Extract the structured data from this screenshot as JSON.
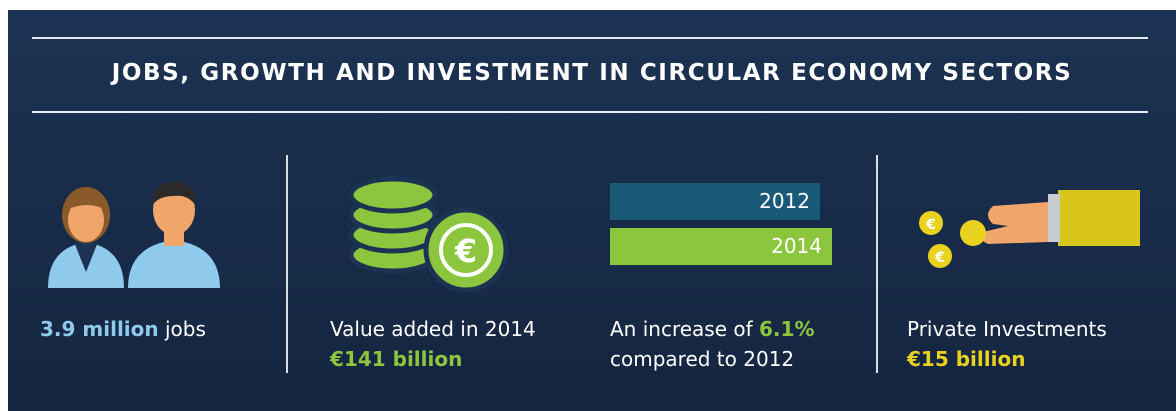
{
  "title": "JOBS, GROWTH AND INVESTMENT IN CIRCULAR ECONOMY SECTORS",
  "panels": [
    {
      "highlight": "3.9 million",
      "text": "jobs"
    },
    {
      "text": "Value added in 2014",
      "highlight": "€141 billion"
    },
    {
      "text": "An increase of",
      "highlight": "6.1%",
      "text2": "compared to 2012",
      "bars": [
        "2012",
        "2014"
      ]
    },
    {
      "text": "Private Investments",
      "highlight": "€15 billion"
    }
  ]
}
